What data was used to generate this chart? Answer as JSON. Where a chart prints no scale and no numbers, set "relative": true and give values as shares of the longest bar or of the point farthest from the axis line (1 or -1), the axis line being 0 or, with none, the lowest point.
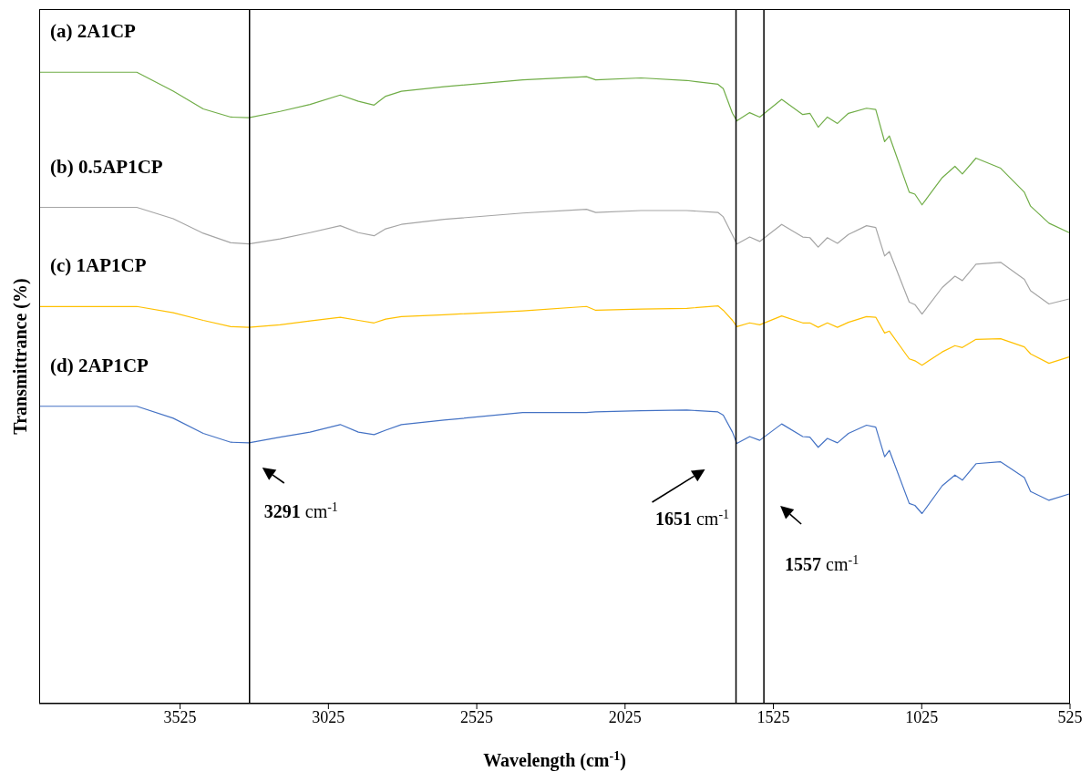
{
  "chart_data": {
    "type": "line",
    "xlabel": "Wavelength (cm$^{-1}$)",
    "ylabel": "Transmittrance (%)",
    "relative": true,
    "xlim": [
      4000,
      525
    ],
    "xticks": [
      3525,
      3025,
      2525,
      2025,
      1525,
      1025,
      525
    ],
    "x": [
      4000,
      3671,
      3548,
      3447,
      3354,
      3293,
      3188,
      3087,
      2985,
      2924,
      2871,
      2832,
      2779,
      2635,
      2370,
      2155,
      2124,
      1971,
      1817,
      1712,
      1694,
      1663,
      1648,
      1605,
      1571,
      1497,
      1426,
      1402,
      1374,
      1343,
      1309,
      1272,
      1211,
      1180,
      1150,
      1134,
      1067,
      1048,
      1024,
      956,
      913,
      888,
      842,
      759,
      679,
      658,
      596,
      528
    ],
    "series": [
      {
        "name": "(a)  2A1CP",
        "color": "#70ad47",
        "values": [
          1.0,
          1.0,
          0.97,
          0.942,
          0.929,
          0.928,
          0.938,
          0.949,
          0.964,
          0.954,
          0.948,
          0.962,
          0.97,
          0.977,
          0.988,
          0.993,
          0.988,
          0.991,
          0.987,
          0.981,
          0.974,
          0.935,
          0.923,
          0.936,
          0.929,
          0.957,
          0.933,
          0.935,
          0.913,
          0.929,
          0.919,
          0.935,
          0.943,
          0.941,
          0.89,
          0.899,
          0.81,
          0.807,
          0.79,
          0.833,
          0.851,
          0.839,
          0.864,
          0.848,
          0.81,
          0.788,
          0.761,
          0.746
        ]
      },
      {
        "name": "(b)  0.5AP1CP",
        "color": "#a5a5a5",
        "values": [
          0.786,
          0.786,
          0.768,
          0.745,
          0.73,
          0.728,
          0.736,
          0.746,
          0.757,
          0.746,
          0.741,
          0.752,
          0.759,
          0.767,
          0.777,
          0.783,
          0.778,
          0.781,
          0.781,
          0.778,
          0.771,
          0.742,
          0.728,
          0.739,
          0.732,
          0.759,
          0.739,
          0.738,
          0.723,
          0.738,
          0.729,
          0.743,
          0.757,
          0.754,
          0.709,
          0.716,
          0.636,
          0.632,
          0.617,
          0.659,
          0.677,
          0.67,
          0.696,
          0.699,
          0.672,
          0.654,
          0.633,
          0.641
        ]
      },
      {
        "name": "(c)  1AP1CP",
        "color": "#ffc000",
        "values": [
          0.629,
          0.629,
          0.619,
          0.607,
          0.597,
          0.596,
          0.6,
          0.606,
          0.612,
          0.607,
          0.603,
          0.609,
          0.613,
          0.616,
          0.622,
          0.629,
          0.623,
          0.625,
          0.626,
          0.63,
          0.623,
          0.607,
          0.597,
          0.603,
          0.6,
          0.614,
          0.603,
          0.603,
          0.596,
          0.603,
          0.596,
          0.604,
          0.613,
          0.612,
          0.587,
          0.59,
          0.546,
          0.543,
          0.536,
          0.557,
          0.567,
          0.564,
          0.577,
          0.578,
          0.565,
          0.554,
          0.539,
          0.549
        ]
      },
      {
        "name": "(d)  2AP1CP",
        "color": "#4472c4",
        "values": [
          0.471,
          0.471,
          0.452,
          0.428,
          0.414,
          0.413,
          0.422,
          0.43,
          0.442,
          0.43,
          0.426,
          0.433,
          0.442,
          0.449,
          0.461,
          0.461,
          0.462,
          0.464,
          0.465,
          0.462,
          0.457,
          0.43,
          0.412,
          0.423,
          0.417,
          0.443,
          0.423,
          0.422,
          0.406,
          0.42,
          0.413,
          0.428,
          0.441,
          0.438,
          0.391,
          0.401,
          0.317,
          0.314,
          0.301,
          0.345,
          0.362,
          0.354,
          0.38,
          0.383,
          0.358,
          0.336,
          0.322,
          0.332
        ]
      }
    ],
    "ref_lines": [
      {
        "axis": "x",
        "value": 3291,
        "label": "3291 cm$^{-1}$",
        "color": "#000000"
      },
      {
        "axis": "x",
        "value": 1651,
        "label": "1651 cm$^{-1}$",
        "color": "#000000"
      },
      {
        "axis": "x",
        "value": 1557,
        "label": "1557 cm$^{-1}$",
        "color": "#000000"
      }
    ]
  }
}
